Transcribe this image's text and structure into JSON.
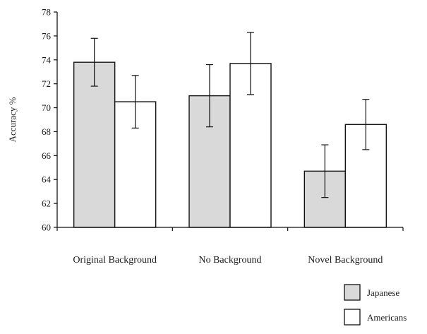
{
  "chart_data": {
    "type": "bar",
    "title": "",
    "xlabel": "",
    "ylabel": "Accuracy %",
    "ylim": [
      60,
      78
    ],
    "yticks": [
      60,
      62,
      64,
      66,
      68,
      70,
      72,
      74,
      76,
      78
    ],
    "categories": [
      "Original Background",
      "No Background",
      "Novel Background"
    ],
    "series": [
      {
        "name": "Japanese",
        "values": [
          73.8,
          71.0,
          64.7
        ],
        "error": [
          2.0,
          2.6,
          2.2
        ],
        "color": "#d9d9d9"
      },
      {
        "name": "Americans",
        "values": [
          70.5,
          73.7,
          68.6
        ],
        "error": [
          2.2,
          2.6,
          2.1
        ],
        "color": "#ffffff"
      }
    ],
    "grid": false,
    "legend": "bottom-right"
  }
}
